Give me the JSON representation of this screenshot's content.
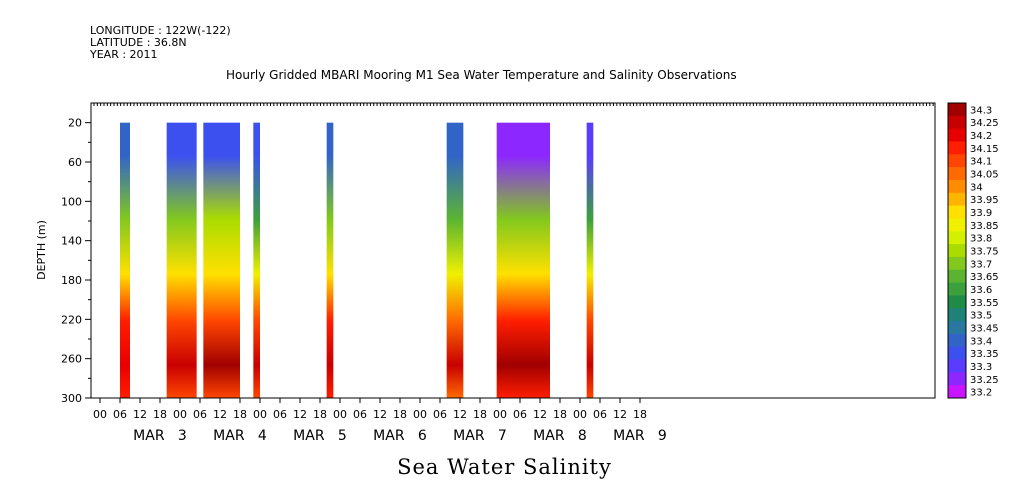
{
  "header": {
    "longitude": "LONGITUDE : 122W(-122)",
    "latitude": "LATITUDE : 36.8N",
    "year": "YEAR : 2011"
  },
  "chart_data": {
    "type": "heatmap",
    "title": "Hourly Gridded MBARI Mooring M1 Sea Water Temperature and Salinity Observations",
    "subtitle": "Sea Water Salinity",
    "ylabel": "DEPTH (m)",
    "xlabel": "",
    "ylim": [
      300,
      0
    ],
    "y_ticks": [
      20,
      60,
      100,
      140,
      180,
      220,
      260,
      300
    ],
    "x_tick_labels": [
      "00",
      "06",
      "12",
      "18",
      "00",
      "06",
      "12",
      "18",
      "00",
      "06",
      "12",
      "18",
      "00",
      "06",
      "12",
      "18",
      "00",
      "06",
      "12",
      "18",
      "00",
      "06",
      "12",
      "18",
      "00",
      "06",
      "12",
      "18"
    ],
    "day_labels": [
      "MAR   3",
      "MAR   4",
      "MAR   5",
      "MAR   6",
      "MAR   7",
      "MAR   8",
      "MAR   9"
    ],
    "colorbar_levels": [
      "34.3",
      "34.25",
      "34.2",
      "34.15",
      "34.1",
      "34.05",
      "34",
      "33.95",
      "33.9",
      "33.85",
      "33.8",
      "33.75",
      "33.7",
      "33.65",
      "33.6",
      "33.55",
      "33.5",
      "33.45",
      "33.4",
      "33.35",
      "33.3",
      "33.25",
      "33.2"
    ],
    "colorbar_colors": [
      "#a00000",
      "#c80000",
      "#e60000",
      "#ff1e00",
      "#ff4600",
      "#ff6a00",
      "#ff8c00",
      "#ffb400",
      "#ffe000",
      "#f0f000",
      "#d2f000",
      "#aadc00",
      "#82c81e",
      "#5ab432",
      "#3ca03c",
      "#1e8c46",
      "#1e8278",
      "#2878a0",
      "#3264c8",
      "#3c50f0",
      "#5a3cff",
      "#8c28ff",
      "#c814ff"
    ],
    "data_units": "hours since 00 MAR 3; depth in m; salinity",
    "segments": [
      {
        "x_start": 6,
        "x_end": 9,
        "surface": 33.4,
        "mid": 33.7,
        "deep": 34.15,
        "bottom": 34.2
      },
      {
        "x_start": 20,
        "x_end": 29,
        "surface": 33.35,
        "mid": 33.7,
        "deep": 34.1,
        "bottom": 34.25
      },
      {
        "x_start": 31,
        "x_end": 42,
        "surface": 33.35,
        "mid": 33.75,
        "deep": 34.1,
        "bottom": 34.3
      },
      {
        "x_start": 46,
        "x_end": 48,
        "surface": 33.35,
        "mid": 33.6,
        "deep": 34.1,
        "bottom": 34.25
      },
      {
        "x_start": 68,
        "x_end": 70,
        "surface": 33.4,
        "mid": 33.7,
        "deep": 34.15,
        "bottom": 34.25
      },
      {
        "x_start": 104,
        "x_end": 109,
        "surface": 33.4,
        "mid": 33.65,
        "deep": 34.05,
        "bottom": 34.25
      },
      {
        "x_start": 119,
        "x_end": 135,
        "surface": 33.25,
        "mid": 33.7,
        "deep": 34.15,
        "bottom": 34.3
      },
      {
        "x_start": 146,
        "x_end": 148,
        "surface": 33.3,
        "mid": 33.6,
        "deep": 34.1,
        "bottom": 34.25
      }
    ]
  }
}
